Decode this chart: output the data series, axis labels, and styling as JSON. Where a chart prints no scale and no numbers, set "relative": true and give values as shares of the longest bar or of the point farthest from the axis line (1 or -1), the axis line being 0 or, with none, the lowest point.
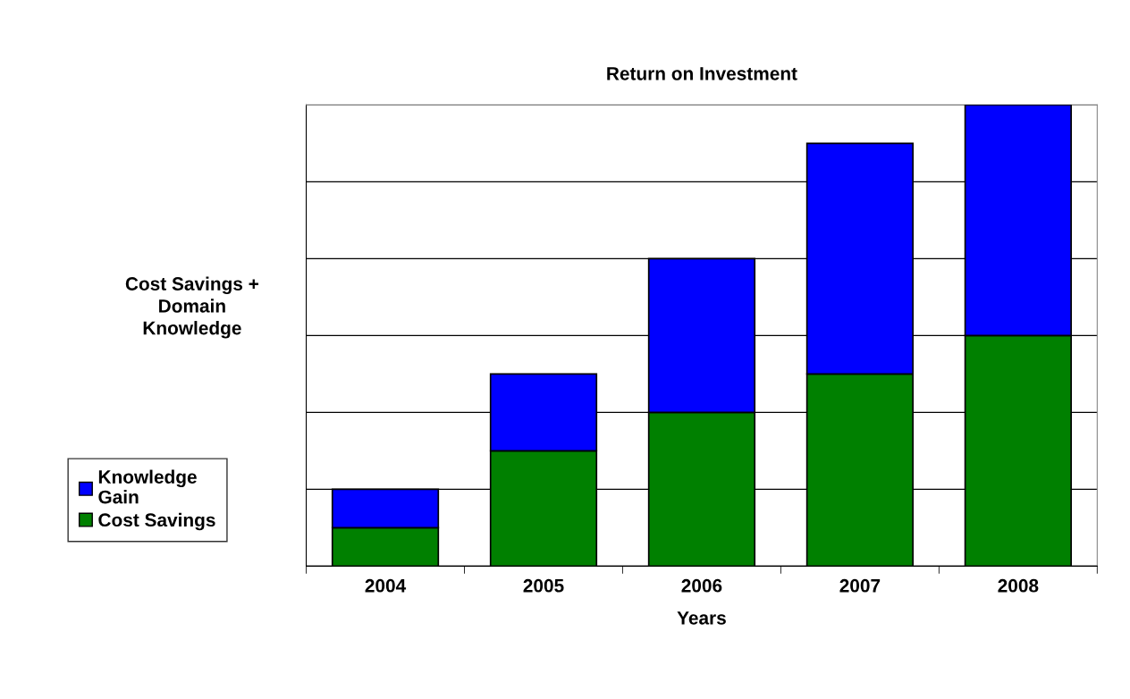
{
  "chart_data": {
    "type": "bar",
    "title": "Return on Investment",
    "xlabel": "Years",
    "ylabel": "Cost Savings +\nDomain\nKnowledge",
    "categories": [
      "2004",
      "2005",
      "2006",
      "2007",
      "2008"
    ],
    "stacked": true,
    "relative": true,
    "grid": "y",
    "legend": "bottom left",
    "series": [
      {
        "name": "Cost Savings",
        "color": "#008000",
        "values": [
          0.0833,
          0.25,
          0.3333,
          0.4167,
          0.5
        ]
      },
      {
        "name": "Knowledge\nGain",
        "color": "#0000ff",
        "values": [
          0.0833,
          0.1667,
          0.3333,
          0.5,
          0.5
        ]
      }
    ]
  }
}
